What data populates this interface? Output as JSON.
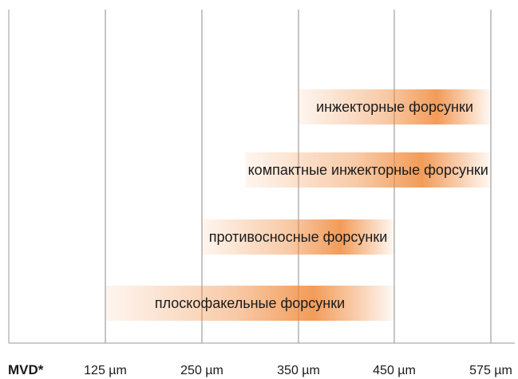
{
  "chart_data": {
    "type": "bar",
    "orientation": "horizontal-range",
    "xlabel": "MVD*",
    "x_ticks": [
      "125 µm",
      "250 µm",
      "350 µm",
      "450 µm",
      "575 µm"
    ],
    "x_tick_values": [
      125,
      250,
      350,
      450,
      575
    ],
    "bar_color": "#F08A3C",
    "categories": [
      "инжекторные форсунки",
      "компактные инжекторные форсунки",
      "противосносные форсунки",
      "плоскофакельные форсунки"
    ],
    "ranges": [
      {
        "label": "инжекторные форсунки",
        "start": 350,
        "end": 575
      },
      {
        "label": "компактные инжекторные форсунки",
        "start": 295,
        "end": 575
      },
      {
        "label": "противосносные форсунки",
        "start": 250,
        "end": 450
      },
      {
        "label": "плоскофакельные форсунки",
        "start": 125,
        "end": 450
      }
    ]
  }
}
